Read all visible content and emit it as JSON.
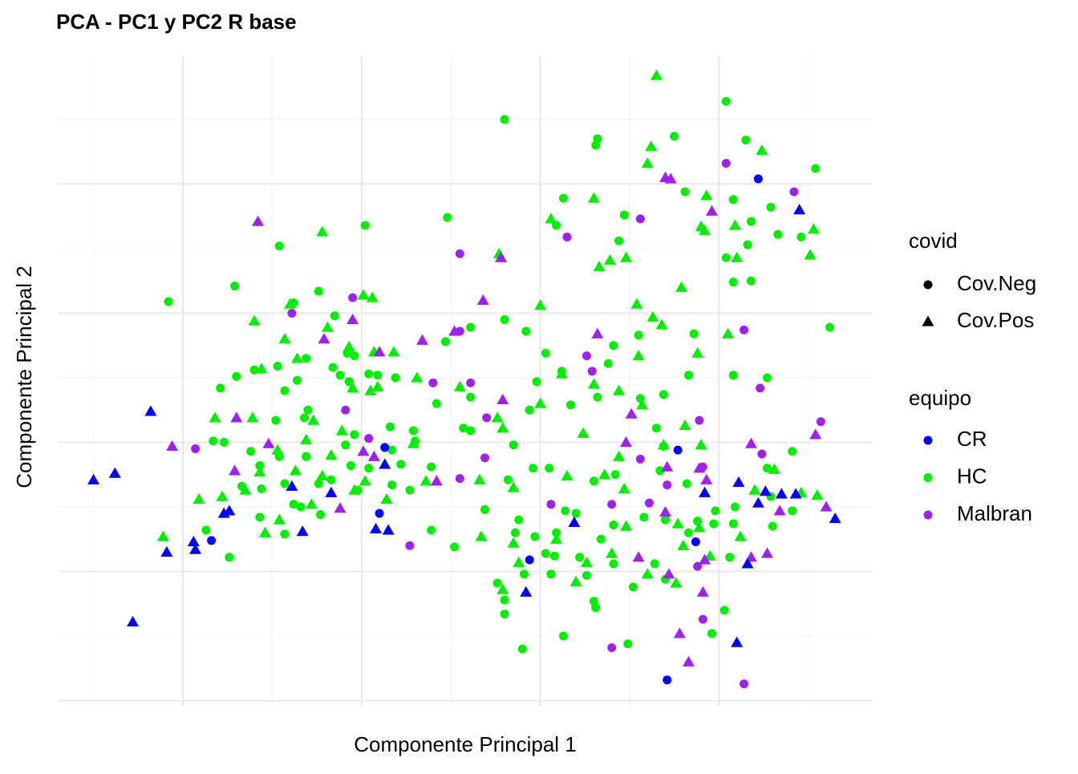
{
  "chart_data": {
    "type": "scatter",
    "title": "PCA - PC1 y PC2 R base",
    "x_label": "Componente Principal 1",
    "y_label": "Componente Principal 2",
    "xlim": [
      -17.0,
      28.6
    ],
    "ylim": [
      -20.4,
      29.9
    ],
    "xticks": [
      -10,
      0,
      10,
      20
    ],
    "yticks": [
      -20,
      -10,
      0,
      10,
      20
    ],
    "x_minor_ticks": [
      -15,
      -5,
      5,
      15,
      25
    ],
    "y_minor_ticks": [
      -15,
      -5,
      5,
      15,
      25
    ],
    "grid": true,
    "legend_position": "right",
    "legends": [
      {
        "title": "covid",
        "labels": [
          "Cov.Neg",
          "Cov.Pos"
        ],
        "shapes": [
          "circle",
          "triangle"
        ]
      },
      {
        "title": "equipo",
        "labels": [
          "CR",
          "HC",
          "Malbran"
        ],
        "colors": [
          "#0000ff",
          "#00ee00",
          "#a020f0"
        ]
      }
    ],
    "series": [
      {
        "equipo": 1,
        "covid": 0,
        "x": [
          8.0,
          -4.6,
          -10.8,
          -7.1,
          0.2,
          4.8,
          11.3,
          13.2,
          13.1,
          17.5,
          20.4,
          21.5,
          18.1,
          20.8,
          22.9,
          21.8,
          14.7,
          10.9,
          14.4,
          25.4,
          23.3,
          24.6,
          21.6,
          20.4,
          21.8,
          20.8,
          26.2,
          8.0,
          9.2,
          10.3,
          14.1,
          15.5,
          18.6,
          22.7,
          20.8,
          15.6,
          13.8,
          11.2,
          9.8,
          9.4,
          11.7,
          13.2,
          16.9,
          18.3,
          16.5,
          16.9,
          24.1,
          22.7,
          10.5,
          9.6,
          8.2,
          6.9,
          8.8,
          8.6,
          9.7,
          10.9,
          10.8,
          10.6,
          7.6,
          8.0,
          8.0,
          9.0,
          11.3,
          13.0,
          13.1,
          14.9,
          15.2,
          16.4,
          17.0,
          19.6,
          20.3,
          20.6,
          20.8,
          20.9,
          19.8,
          18.8,
          18.3,
          17.0,
          15.8,
          14.1,
          13.4,
          12.2,
          12.6,
          14.1,
          12.0,
          11.4,
          13.0,
          14.2,
          16.7,
          18.2,
          19.7,
          10.3,
          9.1,
          3.9,
          5.2,
          2.7,
          1.7,
          -0.2,
          0.4,
          1.7,
          2.2,
          3.9,
          3.0,
          2.9,
          6.1,
          4.2,
          6.1,
          6.1,
          4.7,
          1.9,
          0.9,
          0.4,
          -0.7,
          -1.2,
          -1.6,
          -0.4,
          -0.8,
          -1.5,
          -2.4,
          -3.8,
          -4.7,
          -3.1,
          -3.6,
          -4.3,
          -3.0,
          -3.2,
          -4.8,
          -6.0,
          -7.0,
          -7.9,
          -8.3,
          -7.7,
          -6.2,
          -5.7,
          -4.6,
          -4.3,
          -3.8,
          -3.4,
          -2.4,
          -2.3,
          -4.3,
          -5.7,
          -7.4,
          -8.7,
          -6.7,
          -5.6,
          -1.7,
          -0.6,
          -3.1,
          -0.9,
          -0.4,
          1.6,
          5.7,
          8.5,
          22.9,
          23.0,
          24.1
        ],
        "y": [
          25.0,
          15.2,
          10.9,
          12.1,
          16.8,
          17.4,
          18.9,
          23.5,
          23.0,
          23.7,
          26.4,
          23.4,
          19.4,
          18.8,
          18.2,
          17.1,
          17.6,
          16.8,
          15.6,
          21.2,
          16.1,
          15.9,
          15.3,
          14.3,
          12.5,
          12.4,
          8.9,
          9.5,
          8.6,
          6.9,
          7.5,
          8.3,
          8.4,
          5.0,
          5.2,
          3.4,
          6.1,
          5.5,
          4.7,
          2.5,
          2.9,
          3.5,
          3.7,
          5.2,
          1.1,
          -0.3,
          -0.7,
          -2.0,
          -2.0,
          -2.0,
          -2.9,
          -5.2,
          -6.0,
          -7.0,
          -7.3,
          -7.0,
          -8.8,
          -10.2,
          -10.9,
          -12.2,
          -13.3,
          -16.0,
          -15.0,
          -12.3,
          -12.8,
          -15.6,
          -11.2,
          -9.4,
          -10.6,
          -14.8,
          -13.0,
          -8.9,
          -6.3,
          -5.0,
          -5.3,
          -6.1,
          -7.0,
          -6.0,
          -5.8,
          -6.4,
          -7.5,
          -8.9,
          -10.3,
          -9.4,
          -5.5,
          -5.3,
          -3.0,
          -2.5,
          -2.2,
          -3.2,
          -6.3,
          -8.6,
          -10.2,
          -6.8,
          -8.1,
          -3.7,
          -3.3,
          -3.7,
          -2.0,
          -0.6,
          -1.7,
          -1.9,
          0.1,
          0.9,
          0.9,
          3.0,
          3.5,
          8.9,
          7.8,
          5.0,
          5.2,
          5.3,
          4.7,
          5.2,
          5.8,
          6.7,
          6.9,
          9.8,
          11.7,
          10.8,
          5.9,
          6.5,
          4.8,
          4.0,
          2.5,
          1.9,
          1.7,
          5.6,
          5.1,
          4.2,
          0.1,
          0.0,
          -0.7,
          -1.8,
          -1.1,
          -3.2,
          -4.8,
          -5.0,
          -3.2,
          -5.6,
          -7.1,
          -5.8,
          -8.9,
          -6.8,
          -3.4,
          -3.6,
          -2.9,
          -1.8,
          -1.1,
          -0.2,
          0.6,
          1.2,
          1.1,
          -0.2,
          -4.2,
          -6.5,
          -5.3
        ]
      },
      {
        "equipo": 1,
        "covid": 1,
        "x": [
          16.5,
          16.2,
          16.0,
          22.4,
          19.3,
          13.0,
          19.0,
          19.2,
          20.9,
          25.3,
          25.1,
          21.0,
          14.8,
          13.9,
          13.3,
          10.6,
          7.7,
          -2.2,
          -6.0,
          -4.0,
          0.1,
          0.6,
          -1.9,
          -0.7,
          0.7,
          10.0,
          15.4,
          17.9,
          16.3,
          16.8,
          20.5,
          18.8,
          15.5,
          11.2,
          13.0,
          14.4,
          15.7,
          12.4,
          7.9,
          7.6,
          18.1,
          19.0,
          16.9,
          14.4,
          11.5,
          8.5,
          6.7,
          8.5,
          8.8,
          7.9,
          12.0,
          12.6,
          14.0,
          16.0,
          17.6,
          18.0,
          18.9,
          21.2,
          22.0,
          23.1,
          24.6,
          25.5,
          19.5,
          17.7,
          14.8,
          14.7,
          13.6,
          10.9,
          6.6,
          3.6,
          1.4,
          -0.4,
          0.2,
          0.9,
          -0.5,
          0.5,
          2.9,
          3.1,
          1.8,
          5.5,
          -1.1,
          -1.7,
          -2.2,
          -2.8,
          -4.6,
          -5.4,
          -4.7,
          -6.1,
          -8.2,
          -9.1,
          -11.1,
          -7.8,
          -6.5,
          -5.7,
          -3.7,
          -3.1,
          -2.7,
          -3.6,
          -4.3,
          -5.6,
          10.0
        ],
        "y": [
          28.4,
          22.9,
          21.6,
          22.6,
          19.1,
          18.9,
          16.7,
          16.4,
          16.8,
          16.5,
          14.5,
          14.3,
          14.3,
          14.1,
          13.6,
          17.3,
          14.6,
          16.3,
          9.4,
          10.7,
          11.4,
          11.2,
          8.9,
          7.4,
          7.0,
          10.6,
          10.7,
          12.0,
          9.7,
          9.1,
          8.4,
          6.9,
          6.7,
          5.3,
          4.5,
          4.0,
          2.9,
          0.7,
          1.1,
          1.9,
          1.3,
          -0.2,
          -0.2,
          -1.1,
          -2.6,
          -3.5,
          -7.3,
          -7.8,
          -9.3,
          -11.4,
          -10.8,
          -9.3,
          -8.6,
          -10.2,
          -10.9,
          -8.0,
          -6.6,
          -7.3,
          -3.7,
          -2.1,
          -3.9,
          -4.1,
          -8.8,
          -6.3,
          -6.5,
          -3.6,
          -2.5,
          -7.5,
          -2.9,
          -3.0,
          -4.4,
          -3.7,
          -3.0,
          4.3,
          4.2,
          4.0,
          -0.1,
          5.0,
          7.0,
          4.3,
          0.9,
          -1.0,
          -2.6,
          -4.8,
          -6.0,
          -7.0,
          -0.6,
          1.9,
          1.9,
          -4.4,
          -7.3,
          -4.2,
          -3.7,
          -2.3,
          -2.2,
          0.2,
          1.7,
          6.5,
          8.0,
          5.7,
          3.0
        ]
      },
      {
        "equipo": 2,
        "covid": 0,
        "x": [
          -9.3,
          -3.9,
          -0.5,
          -0.9,
          0.4,
          5.5,
          11.5,
          15.6,
          20.4,
          24.2,
          21.4,
          22.3,
          25.7,
          12.9,
          12.6,
          7.0,
          6.9,
          5.5,
          2.7,
          10.6,
          14.0,
          15.6,
          17.1,
          19.1,
          18.9,
          16.1,
          18.8,
          19.1,
          14.0,
          21.4,
          22.4,
          5.5,
          6.1,
          4.0
        ],
        "y": [
          -0.5,
          10.0,
          11.2,
          2.5,
          0.3,
          14.6,
          15.9,
          17.3,
          21.6,
          19.4,
          8.7,
          4.2,
          1.6,
          5.5,
          6.7,
          1.9,
          -1.2,
          -2.8,
          -8.0,
          -4.8,
          -4.8,
          -1.3,
          -3.3,
          -1.9,
          1.7,
          -4.7,
          -9.6,
          -13.7,
          -15.9,
          -18.7,
          -0.9,
          8.6,
          4.6,
          4.6
        ]
      },
      {
        "equipo": 2,
        "covid": 1,
        "x": [
          -5.8,
          -10.6,
          -7.0,
          -5.2,
          -7.1,
          -2.1,
          -1.2,
          1.0,
          0.7,
          3.4,
          4.2,
          5.2,
          6.8,
          7.9,
          7.8,
          13.2,
          15.1,
          17.0,
          17.3,
          19.6,
          14.8,
          17.0,
          18.9,
          19.2,
          17.2,
          17.8,
          18.3,
          21.8,
          21.8,
          22.7,
          25.4,
          26.0,
          23.4,
          19.3,
          15.5,
          17.1,
          -0.5,
          0.1,
          19.1
        ],
        "y": [
          17.1,
          -0.3,
          1.9,
          -0.1,
          -2.2,
          8.0,
          -5.1,
          7.0,
          -1.1,
          7.9,
          -3.0,
          8.6,
          11.0,
          3.3,
          14.3,
          8.4,
          2.2,
          20.5,
          20.4,
          17.9,
          0.0,
          -5.4,
          -2.0,
          -9.1,
          -10.2,
          -14.8,
          -17.0,
          -0.1,
          -8.9,
          -8.6,
          0.6,
          -5.0,
          -5.3,
          -2.9,
          -8.9,
          -1.9,
          9.5,
          -0.7,
          -11.6
        ]
      },
      {
        "equipo": 0,
        "covid": 0,
        "x": [
          22.2,
          1.3,
          17.7,
          1.0,
          -8.4,
          18.7,
          9.4,
          17.1
        ],
        "y": [
          20.4,
          -0.4,
          -0.6,
          -5.5,
          -7.6,
          -7.7,
          -9.1,
          -18.4
        ]
      },
      {
        "equipo": 0,
        "covid": 1,
        "x": [
          -15.0,
          -13.8,
          -11.8,
          -12.8,
          -10.9,
          -9.4,
          -9.3,
          -7.4,
          -7.7,
          -3.9,
          -3.3,
          -1.7,
          0.8,
          1.5,
          1.3,
          9.2,
          11.9,
          19.2,
          21.1,
          21.6,
          22.2,
          22.6,
          23.5,
          24.3,
          24.5,
          26.5,
          21.0
        ],
        "y": [
          -2.9,
          -2.4,
          2.4,
          -13.9,
          -8.5,
          -7.7,
          -8.3,
          -5.3,
          -5.5,
          -3.4,
          -6.9,
          -3.9,
          -6.7,
          -6.8,
          -1.7,
          -11.6,
          -6.2,
          -3.9,
          -3.1,
          -9.4,
          -4.7,
          -3.8,
          -4.0,
          -4.0,
          18.0,
          -5.9,
          -15.5
        ]
      }
    ]
  }
}
